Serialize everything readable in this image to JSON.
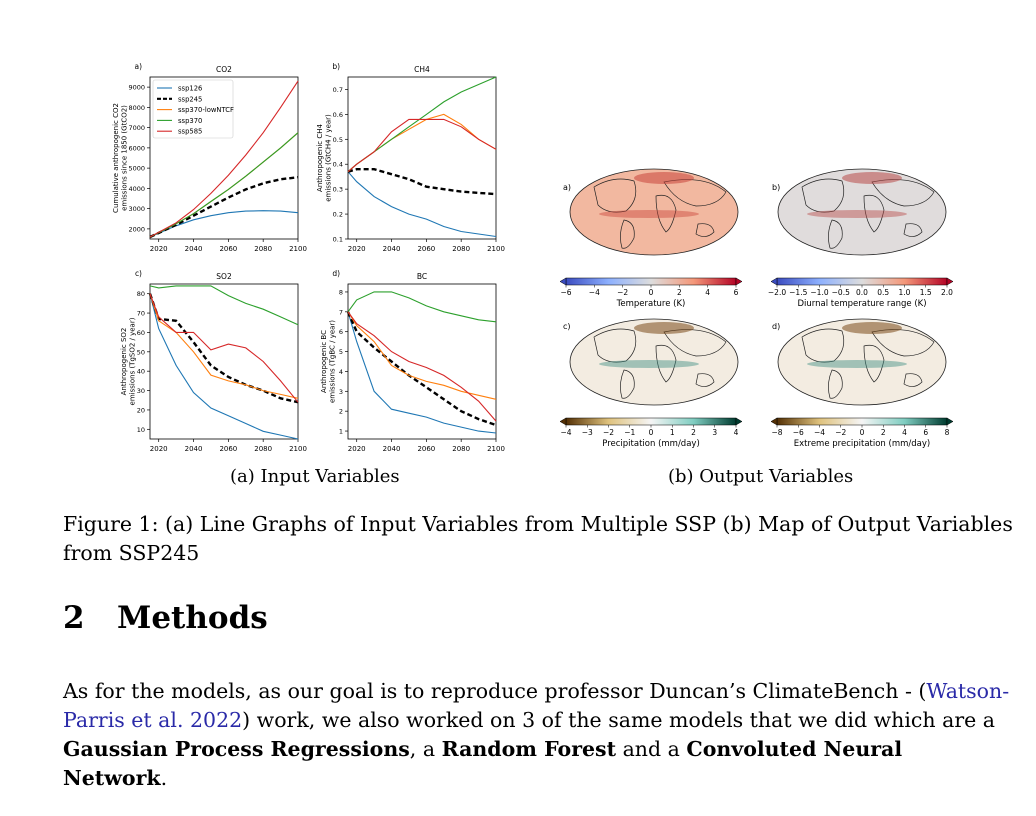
{
  "figure": {
    "left": {
      "subcaption": "(a) Input Variables",
      "panels": [
        {
          "letter": "a)",
          "title": "CO2",
          "ylabel": [
            "Cumulative anthropogenic CO2",
            "emissions since 1850 (GtCO2)"
          ],
          "xticks": [
            2020,
            2040,
            2060,
            2080,
            2100
          ],
          "yticks": [
            2000,
            3000,
            4000,
            5000,
            6000,
            7000,
            8000,
            9000
          ],
          "legend": [
            "ssp126",
            "ssp245",
            "ssp370-lowNTCF",
            "ssp370",
            "ssp585"
          ]
        },
        {
          "letter": "b)",
          "title": "CH4",
          "ylabel": [
            "Anthropogenic CH4",
            "emissions (GtCH4 / year)"
          ],
          "xticks": [
            2020,
            2040,
            2060,
            2080,
            2100
          ],
          "yticks": [
            0.1,
            0.2,
            0.3,
            0.4,
            0.5,
            0.6,
            0.7
          ]
        },
        {
          "letter": "c)",
          "title": "SO2",
          "ylabel": [
            "Anthropogenic SO2",
            "emissions (TgSO2 / year)"
          ],
          "xticks": [
            2020,
            2040,
            2060,
            2080,
            2100
          ],
          "yticks": [
            10,
            20,
            30,
            40,
            50,
            60,
            70,
            80
          ]
        },
        {
          "letter": "d)",
          "title": "BC",
          "ylabel": [
            "Anthropogenic BC",
            "emissions (TgBC / year)"
          ],
          "xticks": [
            2020,
            2040,
            2060,
            2080,
            2100
          ],
          "yticks": [
            1,
            2,
            3,
            4,
            5,
            6,
            7,
            8
          ]
        }
      ]
    },
    "right": {
      "subcaption": "(b) Output Variables",
      "maps": [
        {
          "letter": "a)",
          "colorbar_label": "Temperature (K)",
          "ticks": [
            "−6",
            "−4",
            "−2",
            "0",
            "2",
            "4",
            "6"
          ],
          "cmap": "coolwarm"
        },
        {
          "letter": "b)",
          "colorbar_label": "Diurnal temperature range (K)",
          "ticks": [
            "−2.0",
            "−1.5",
            "−1.0",
            "−0.5",
            "0.0",
            "0.5",
            "1.0",
            "1.5",
            "2.0"
          ],
          "cmap": "coolwarm"
        },
        {
          "letter": "c)",
          "colorbar_label": "Precipitation (mm/day)",
          "ticks": [
            "−4",
            "−3",
            "−2",
            "−1",
            "0",
            "1",
            "2",
            "3",
            "4"
          ],
          "cmap": "BrBG"
        },
        {
          "letter": "d)",
          "colorbar_label": "Extreme precipitation (mm/day)",
          "ticks": [
            "−8",
            "−6",
            "−4",
            "−2",
            "0",
            "2",
            "4",
            "6",
            "8"
          ],
          "cmap": "BrBG"
        }
      ]
    }
  },
  "chart_data": [
    {
      "type": "line",
      "title": "CO2",
      "xlim": [
        2015,
        2100
      ],
      "ylim": [
        1500,
        9500
      ],
      "x": [
        2015,
        2030,
        2040,
        2050,
        2060,
        2070,
        2080,
        2090,
        2100
      ],
      "series": [
        {
          "name": "ssp126",
          "color": "#1f77b4",
          "values": [
            1600,
            2150,
            2450,
            2650,
            2800,
            2880,
            2900,
            2880,
            2800
          ]
        },
        {
          "name": "ssp245",
          "color": "#000000",
          "values": [
            1600,
            2200,
            2650,
            3100,
            3550,
            3950,
            4250,
            4450,
            4550
          ]
        },
        {
          "name": "ssp370-lowNTCF",
          "color": "#ff7f0e",
          "values": [
            1600,
            2250,
            2750,
            3350,
            3950,
            4600,
            5300,
            6000,
            6750
          ]
        },
        {
          "name": "ssp370",
          "color": "#2ca02c",
          "values": [
            1600,
            2250,
            2750,
            3350,
            3950,
            4600,
            5300,
            6000,
            6750
          ]
        },
        {
          "name": "ssp585",
          "color": "#d62728",
          "values": [
            1600,
            2300,
            2950,
            3750,
            4650,
            5650,
            6750,
            8000,
            9300
          ]
        }
      ]
    },
    {
      "type": "line",
      "title": "CH4",
      "xlim": [
        2015,
        2100
      ],
      "ylim": [
        0.1,
        0.75
      ],
      "x": [
        2015,
        2020,
        2030,
        2040,
        2050,
        2060,
        2070,
        2080,
        2090,
        2100
      ],
      "series": [
        {
          "name": "ssp126",
          "color": "#1f77b4",
          "values": [
            0.37,
            0.33,
            0.27,
            0.23,
            0.2,
            0.18,
            0.15,
            0.13,
            0.12,
            0.11
          ]
        },
        {
          "name": "ssp245",
          "color": "#000000",
          "values": [
            0.37,
            0.38,
            0.38,
            0.36,
            0.34,
            0.31,
            0.3,
            0.29,
            0.285,
            0.28
          ]
        },
        {
          "name": "ssp370-lowNTCF",
          "color": "#ff7f0e",
          "values": [
            0.37,
            0.4,
            0.45,
            0.5,
            0.54,
            0.58,
            0.6,
            0.56,
            0.5,
            0.46
          ]
        },
        {
          "name": "ssp370",
          "color": "#2ca02c",
          "values": [
            0.37,
            0.4,
            0.45,
            0.5,
            0.55,
            0.6,
            0.65,
            0.69,
            0.72,
            0.75
          ]
        },
        {
          "name": "ssp585",
          "color": "#d62728",
          "values": [
            0.37,
            0.4,
            0.45,
            0.53,
            0.58,
            0.58,
            0.58,
            0.55,
            0.5,
            0.46
          ]
        }
      ]
    },
    {
      "type": "line",
      "title": "SO2",
      "xlim": [
        2015,
        2100
      ],
      "ylim": [
        5,
        85
      ],
      "x": [
        2015,
        2020,
        2030,
        2040,
        2050,
        2060,
        2070,
        2080,
        2090,
        2100
      ],
      "series": [
        {
          "name": "ssp126",
          "color": "#1f77b4",
          "values": [
            80,
            62,
            43,
            29,
            21,
            17,
            13,
            9,
            7,
            5
          ]
        },
        {
          "name": "ssp245",
          "color": "#000000",
          "values": [
            80,
            67,
            66,
            55,
            43,
            37,
            33,
            30,
            26,
            24
          ]
        },
        {
          "name": "ssp370-lowNTCF",
          "color": "#ff7f0e",
          "values": [
            80,
            66,
            60,
            50,
            38,
            35,
            33,
            30,
            28,
            26
          ]
        },
        {
          "name": "ssp370",
          "color": "#2ca02c",
          "values": [
            84,
            83,
            84,
            84,
            84,
            79,
            75,
            72,
            68,
            64
          ]
        },
        {
          "name": "ssp585",
          "color": "#d62728",
          "values": [
            80,
            68,
            60,
            60,
            51,
            54,
            52,
            45,
            35,
            24
          ]
        }
      ]
    },
    {
      "type": "line",
      "title": "BC",
      "xlim": [
        2015,
        2100
      ],
      "ylim": [
        0.6,
        8.4
      ],
      "x": [
        2015,
        2020,
        2030,
        2040,
        2050,
        2060,
        2070,
        2080,
        2090,
        2100
      ],
      "series": [
        {
          "name": "ssp126",
          "color": "#1f77b4",
          "values": [
            7.0,
            5.5,
            3.0,
            2.1,
            1.9,
            1.7,
            1.4,
            1.2,
            1.0,
            0.9
          ]
        },
        {
          "name": "ssp245",
          "color": "#000000",
          "values": [
            7.0,
            6.0,
            5.2,
            4.5,
            3.8,
            3.2,
            2.6,
            2.0,
            1.6,
            1.3
          ]
        },
        {
          "name": "ssp370-lowNTCF",
          "color": "#ff7f0e",
          "values": [
            7.0,
            6.3,
            5.5,
            4.3,
            3.8,
            3.5,
            3.3,
            3.0,
            2.8,
            2.6
          ]
        },
        {
          "name": "ssp370",
          "color": "#2ca02c",
          "values": [
            7.0,
            7.6,
            8.0,
            8.0,
            7.7,
            7.3,
            7.0,
            6.8,
            6.6,
            6.5
          ]
        },
        {
          "name": "ssp585",
          "color": "#d62728",
          "values": [
            7.0,
            6.4,
            5.8,
            5.0,
            4.5,
            4.2,
            3.8,
            3.2,
            2.5,
            1.5
          ]
        }
      ]
    }
  ],
  "caption": "Figure 1: (a) Line Graphs of Input Variables from Multiple SSP (b) Map of Output Variables from SSP245",
  "section": {
    "number": "2",
    "title": "Methods"
  },
  "paragraph": {
    "t1": "As for the models, as our goal is to reproduce professor Duncan’s ClimateBench - (",
    "cite": "Watson-Parris et al. 2022",
    "t2": ") work, we also worked on 3 of the same models that we did which are a ",
    "b1": "Gaussian Process Regressions",
    "t3": ", a ",
    "b2": "Random Forest",
    "t4": " and a ",
    "b3": "Convoluted Neural Network",
    "t5": "."
  }
}
